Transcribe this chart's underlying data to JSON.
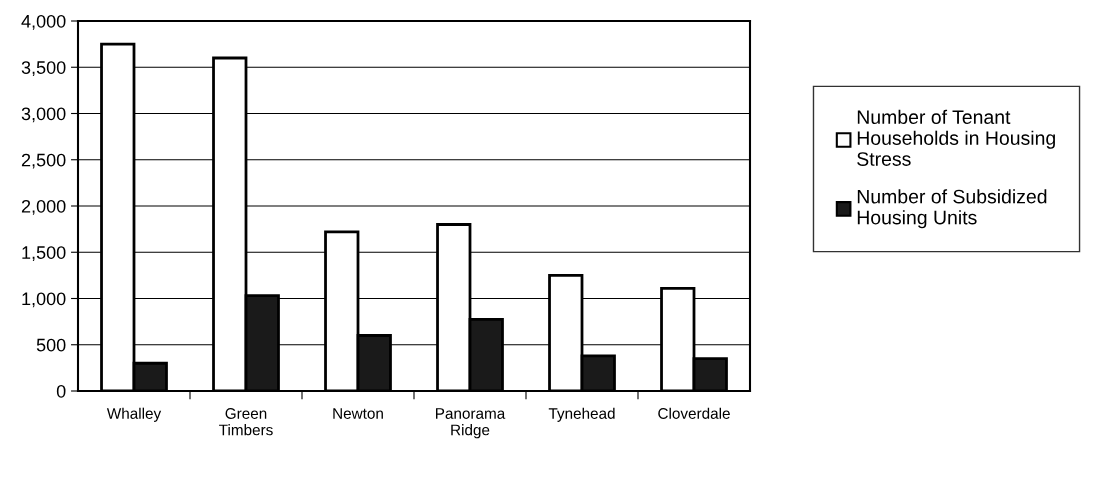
{
  "chart_data": {
    "type": "bar",
    "categories": [
      "Whalley",
      "Green\nTimbers",
      "Newton",
      "Panorama\nRidge",
      "Tynehead",
      "Cloverdale"
    ],
    "series": [
      {
        "name": "Number of Tenant\nHouseholds in Housing\nStress",
        "color": "#ffffff",
        "values": [
          3750,
          3600,
          1720,
          1800,
          1250,
          1110
        ]
      },
      {
        "name": "Number of Subsidized\nHousing Units",
        "color": "#1a1a1a",
        "values": [
          300,
          1030,
          600,
          775,
          380,
          350
        ]
      }
    ],
    "ylim": [
      0,
      4000
    ],
    "yticks": [
      {
        "value": 0,
        "label": "0"
      },
      {
        "value": 500,
        "label": "500"
      },
      {
        "value": 1000,
        "label": "1,000"
      },
      {
        "value": 1500,
        "label": "1,500"
      },
      {
        "value": 2000,
        "label": "2,000"
      },
      {
        "value": 2500,
        "label": "2,500"
      },
      {
        "value": 3000,
        "label": "3,000"
      },
      {
        "value": 3500,
        "label": "3,500"
      },
      {
        "value": 4000,
        "label": "4,000"
      }
    ],
    "grid": "y",
    "legend": "right"
  }
}
